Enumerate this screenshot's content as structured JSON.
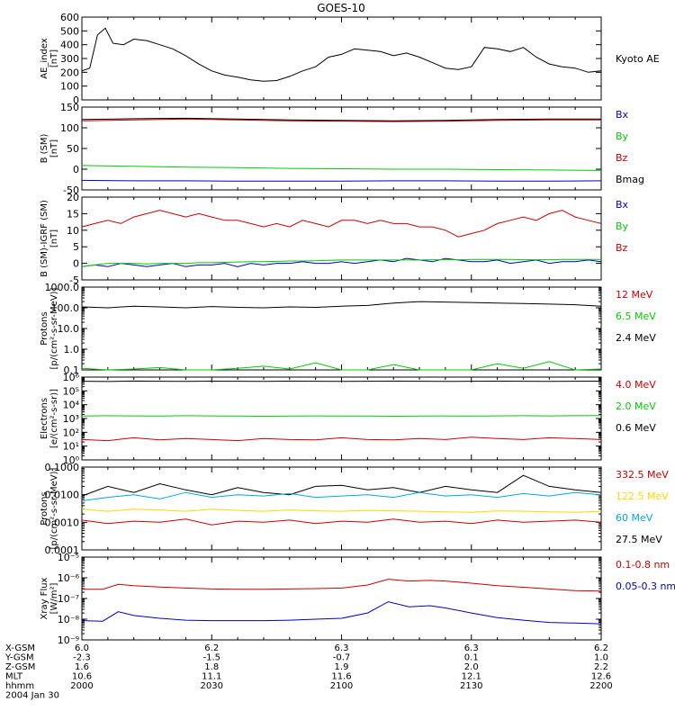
{
  "title": "GOES-10",
  "chart_data": [
    {
      "type": "line",
      "ylabel": [
        "AE_index",
        "[nT]"
      ],
      "ylim": [
        0,
        600
      ],
      "yticks": [
        0,
        100,
        200,
        300,
        400,
        500,
        600
      ],
      "ytick_labels": [
        "0",
        "100",
        "200",
        "300",
        "400",
        "500",
        "600"
      ],
      "legend": [
        {
          "label": "Kyoto AE",
          "color": "#000000"
        }
      ],
      "x": [
        0,
        3,
        6,
        9,
        12,
        16,
        20,
        25,
        30,
        35,
        40,
        45,
        50,
        55,
        60,
        65,
        70,
        75,
        80,
        85,
        90,
        95,
        100,
        105,
        110,
        115,
        120,
        125,
        130,
        135,
        140,
        145,
        150,
        155,
        160,
        165,
        170,
        175,
        180,
        185,
        190,
        195,
        200
      ],
      "series": [
        {
          "name": "Kyoto AE",
          "color": "#000000",
          "values": [
            210,
            230,
            470,
            520,
            410,
            400,
            440,
            430,
            400,
            370,
            320,
            260,
            210,
            180,
            165,
            145,
            135,
            140,
            170,
            210,
            240,
            310,
            330,
            370,
            360,
            350,
            320,
            340,
            310,
            270,
            230,
            220,
            240,
            380,
            370,
            350,
            380,
            310,
            260,
            240,
            230,
            200,
            210
          ]
        }
      ]
    },
    {
      "type": "line",
      "ylabel": [
        "B (SM)",
        "[nT]"
      ],
      "ylim": [
        -50,
        150
      ],
      "yticks": [
        -50,
        0,
        50,
        100,
        150
      ],
      "ytick_labels": [
        "-50",
        "0",
        "50",
        "100",
        "150"
      ],
      "legend": [
        {
          "label": "Bx",
          "color": "#0000cc"
        },
        {
          "label": "By",
          "color": "#00cc00"
        },
        {
          "label": "Bz",
          "color": "#cc0000"
        },
        {
          "label": "Bmag",
          "color": "#000000"
        }
      ],
      "x": [
        0,
        20,
        40,
        60,
        80,
        100,
        120,
        140,
        160,
        180,
        200
      ],
      "series": [
        {
          "name": "Bx",
          "color": "#0000cc",
          "values": [
            -27,
            -28,
            -28,
            -29,
            -29,
            -29,
            -28,
            -28,
            -29,
            -29,
            -28
          ]
        },
        {
          "name": "By",
          "color": "#00cc00",
          "values": [
            9,
            7,
            5,
            4,
            2,
            1,
            0,
            0,
            -1,
            -2,
            -3
          ]
        },
        {
          "name": "Bz",
          "color": "#cc0000",
          "values": [
            117,
            119,
            121,
            119,
            117,
            116,
            115,
            116,
            118,
            119,
            119
          ]
        },
        {
          "name": "Bmag",
          "color": "#000000",
          "values": [
            120,
            122,
            123,
            121,
            119,
            118,
            117,
            118,
            120,
            121,
            121
          ]
        }
      ]
    },
    {
      "type": "line",
      "ylabel": [
        "B (SM)-IGRF (SM)",
        "[nT]"
      ],
      "ylim": [
        -5,
        20
      ],
      "yticks": [
        -5,
        0,
        5,
        10,
        15,
        20
      ],
      "ytick_labels": [
        "-5",
        "0",
        "5",
        "10",
        "15",
        "20"
      ],
      "legend": [
        {
          "label": "Bx",
          "color": "#0000cc"
        },
        {
          "label": "By",
          "color": "#00cc00"
        },
        {
          "label": "Bz",
          "color": "#cc0000"
        }
      ],
      "x": [
        0,
        5,
        10,
        15,
        20,
        25,
        30,
        35,
        40,
        45,
        50,
        55,
        60,
        65,
        70,
        75,
        80,
        85,
        90,
        95,
        100,
        105,
        110,
        115,
        120,
        125,
        130,
        135,
        140,
        145,
        150,
        155,
        160,
        165,
        170,
        175,
        180,
        185,
        190,
        195,
        200
      ],
      "series": [
        {
          "name": "Bx",
          "color": "#0000cc",
          "values": [
            -1,
            -0.5,
            -1,
            0,
            -0.5,
            -1,
            -0.5,
            0,
            -1,
            -0.5,
            -0.5,
            0,
            -1,
            0,
            -0.5,
            0,
            0,
            0.5,
            0,
            0,
            0.5,
            0,
            0.5,
            1,
            0.5,
            1.5,
            1,
            0.5,
            1.5,
            1,
            0.5,
            0.5,
            1,
            0,
            0.5,
            1,
            0,
            0.5,
            0.5,
            1,
            0.5
          ]
        },
        {
          "name": "By",
          "color": "#00cc00",
          "values": [
            -1,
            -0.5,
            0,
            0,
            0,
            -0.2,
            0,
            0,
            0,
            0.2,
            0.2,
            0.3,
            0.4,
            0.5,
            0.5,
            0.6,
            0.7,
            0.7,
            0.8,
            0.9,
            1,
            1,
            1,
            1,
            1,
            1,
            1,
            1.1,
            1.1,
            1.1,
            1.2,
            1.2,
            1.2,
            1.2,
            1.1,
            1.1,
            1.1,
            1.2,
            1.2,
            1.2,
            1.2
          ]
        },
        {
          "name": "Bz",
          "color": "#cc0000",
          "values": [
            11,
            12,
            13,
            12,
            14,
            15,
            16,
            15,
            14,
            15,
            14,
            13,
            13,
            12,
            11,
            12,
            11,
            13,
            12,
            11,
            13,
            13,
            12,
            13,
            12,
            12,
            11,
            11,
            10,
            8,
            9,
            10,
            12,
            13,
            14,
            13,
            15,
            16,
            14,
            13,
            12
          ]
        }
      ]
    },
    {
      "type": "line",
      "scale": "log",
      "ylabel": [
        "Protons",
        "[p/(cm²-s-sr-MeV)]"
      ],
      "ylim": [
        0.1,
        1000
      ],
      "yticks": [
        0.1,
        1,
        10,
        100,
        1000
      ],
      "ytick_labels": [
        "0.1",
        "1.0",
        "10.0",
        "100.0",
        "1000.0"
      ],
      "legend": [
        {
          "label": "12 MeV",
          "color": "#cc0000"
        },
        {
          "label": "6.5 MeV",
          "color": "#00cc00"
        },
        {
          "label": "2.4 MeV",
          "color": "#000000"
        }
      ],
      "x": [
        0,
        10,
        20,
        30,
        40,
        50,
        60,
        70,
        80,
        90,
        100,
        110,
        120,
        130,
        140,
        150,
        160,
        170,
        180,
        190,
        200
      ],
      "series": [
        {
          "name": "2.4 MeV",
          "color": "#000000",
          "values": [
            110,
            100,
            120,
            110,
            100,
            115,
            105,
            100,
            110,
            105,
            120,
            130,
            170,
            200,
            190,
            180,
            170,
            160,
            150,
            140,
            120
          ]
        },
        {
          "name": "6.5 MeV",
          "color": "#00cc00",
          "values": [
            0.12,
            0.1,
            0.11,
            0.13,
            0.1,
            0.1,
            0.12,
            0.15,
            0.11,
            0.22,
            0.1,
            0.1,
            0.18,
            0.1,
            0.1,
            0.1,
            0.2,
            0.12,
            0.25,
            0.1,
            0.11
          ]
        }
      ]
    },
    {
      "type": "line",
      "scale": "log",
      "ylabel": [
        "Electrons",
        "[e/(cm²-s-sr)]"
      ],
      "ylim": [
        1,
        1000000
      ],
      "yticks": [
        1,
        10,
        100,
        1000,
        10000,
        100000,
        1000000
      ],
      "ytick_labels": [
        "10⁰",
        "10¹",
        "10²",
        "10³",
        "10⁴",
        "10⁵",
        "10⁶"
      ],
      "legend": [
        {
          "label": "4.0 MeV",
          "color": "#cc0000"
        },
        {
          "label": "2.0 MeV",
          "color": "#00cc00"
        },
        {
          "label": "0.6 MeV",
          "color": "#000000"
        }
      ],
      "x": [
        0,
        10,
        20,
        30,
        40,
        50,
        60,
        70,
        80,
        90,
        100,
        110,
        120,
        130,
        140,
        150,
        160,
        170,
        180,
        190,
        200
      ],
      "series": [
        {
          "name": "0.6 MeV",
          "color": "#000000",
          "values": [
            500000,
            480000,
            520000,
            500000,
            490000,
            510000,
            500000,
            495000,
            505000,
            500000,
            490000,
            500000,
            510000,
            500000,
            490000,
            500000,
            510000,
            500000,
            495000,
            500000,
            505000
          ]
        },
        {
          "name": "2.0 MeV",
          "color": "#00cc00",
          "values": [
            1500,
            1600,
            1550,
            1500,
            1600,
            1550,
            1500,
            1450,
            1500,
            1550,
            1500,
            1500,
            1450,
            1500,
            1550,
            1500,
            1550,
            1600,
            1550,
            1600,
            1650
          ]
        },
        {
          "name": "4.0 MeV",
          "color": "#cc0000",
          "values": [
            30,
            25,
            40,
            28,
            35,
            30,
            25,
            35,
            30,
            28,
            40,
            30,
            28,
            35,
            30,
            45,
            35,
            30,
            40,
            35,
            30
          ]
        }
      ]
    },
    {
      "type": "line",
      "scale": "log",
      "ylabel": [
        "Protons",
        "[p/(cm²-s-sr-MeV)]"
      ],
      "ylim": [
        0.0001,
        0.1
      ],
      "yticks": [
        0.0001,
        0.001,
        0.01,
        0.1
      ],
      "ytick_labels": [
        "0.0001",
        "0.0010",
        "0.0100",
        "0.1000"
      ],
      "legend": [
        {
          "label": "332.5 MeV",
          "color": "#cc0000"
        },
        {
          "label": "122.5 MeV",
          "color": "#ffd700"
        },
        {
          "label": "60 MeV",
          "color": "#00aadd"
        },
        {
          "label": "27.5 MeV",
          "color": "#000000"
        }
      ],
      "x": [
        0,
        10,
        20,
        30,
        40,
        50,
        60,
        70,
        80,
        90,
        100,
        110,
        120,
        130,
        140,
        150,
        160,
        170,
        180,
        190,
        200
      ],
      "series": [
        {
          "name": "27.5 MeV",
          "color": "#000000",
          "values": [
            0.009,
            0.02,
            0.012,
            0.025,
            0.015,
            0.01,
            0.018,
            0.012,
            0.01,
            0.02,
            0.022,
            0.015,
            0.018,
            0.012,
            0.02,
            0.015,
            0.012,
            0.05,
            0.02,
            0.015,
            0.012
          ]
        },
        {
          "name": "60 MeV",
          "color": "#00aadd",
          "values": [
            0.006,
            0.008,
            0.01,
            0.007,
            0.012,
            0.008,
            0.01,
            0.009,
            0.011,
            0.008,
            0.009,
            0.01,
            0.008,
            0.012,
            0.009,
            0.01,
            0.008,
            0.011,
            0.009,
            0.012,
            0.01
          ]
        },
        {
          "name": "122.5 MeV",
          "color": "#ffd700",
          "values": [
            0.003,
            0.0025,
            0.003,
            0.0028,
            0.0025,
            0.003,
            0.0027,
            0.0025,
            0.0028,
            0.0026,
            0.0025,
            0.0027,
            0.0026,
            0.0025,
            0.0024,
            0.0023,
            0.0026,
            0.0025,
            0.0024,
            0.0023,
            0.0025
          ]
        },
        {
          "name": "332.5 MeV",
          "color": "#cc0000",
          "values": [
            0.0012,
            0.0009,
            0.0011,
            0.001,
            0.0013,
            0.0008,
            0.0011,
            0.001,
            0.0012,
            0.0009,
            0.0011,
            0.001,
            0.0013,
            0.001,
            0.0011,
            0.0009,
            0.0012,
            0.001,
            0.0011,
            0.0012,
            0.001
          ]
        }
      ]
    },
    {
      "type": "line",
      "scale": "log",
      "ylabel": [
        "Xray Flux",
        "[W/m²]"
      ],
      "ylim": [
        1e-09,
        1e-05
      ],
      "yticks": [
        1e-09,
        1e-08,
        1e-07,
        1e-06,
        1e-05
      ],
      "ytick_labels": [
        "10⁻⁹",
        "10⁻⁸",
        "10⁻⁷",
        "10⁻⁶",
        "10⁻⁵"
      ],
      "legend": [
        {
          "label": "0.1-0.8 nm",
          "color": "#cc0000"
        },
        {
          "label": "0.05-0.3 nm",
          "color": "#0000cc"
        }
      ],
      "x": [
        0,
        8,
        14,
        20,
        30,
        40,
        50,
        60,
        70,
        80,
        90,
        100,
        110,
        118,
        126,
        134,
        140,
        150,
        160,
        170,
        180,
        190,
        200
      ],
      "series": [
        {
          "name": "0.1-0.8 nm",
          "color": "#cc0000",
          "values": [
            2.8e-07,
            2.8e-07,
            4.8e-07,
            4.2e-07,
            3.6e-07,
            3.2e-07,
            2.9e-07,
            2.8e-07,
            2.8e-07,
            2.9e-07,
            3e-07,
            3.2e-07,
            4.5e-07,
            8.5e-07,
            7e-07,
            7.5e-07,
            7e-07,
            5.5e-07,
            4.2e-07,
            3.5e-07,
            2.9e-07,
            2.4e-07,
            2.3e-07
          ]
        },
        {
          "name": "0.05-0.3 nm",
          "color": "#0000cc",
          "values": [
            8.5e-09,
            8e-09,
            2.3e-08,
            1.5e-08,
            1.1e-08,
            9e-09,
            8.5e-09,
            8.5e-09,
            8.5e-09,
            9e-09,
            1e-08,
            1.1e-08,
            2e-08,
            7e-08,
            4e-08,
            4.5e-08,
            3.5e-08,
            2e-08,
            1.2e-08,
            9e-09,
            7e-09,
            6.5e-09,
            6e-09
          ]
        }
      ]
    }
  ],
  "x_axis": {
    "xlim": [
      0,
      200
    ],
    "tick_positions": [
      0,
      50,
      100,
      150,
      200
    ],
    "minor_step": 10,
    "rows": [
      {
        "label": "X-GSM",
        "values": [
          "6.0",
          "6.2",
          "6.3",
          "6.3",
          "6.2"
        ]
      },
      {
        "label": "Y-GSM",
        "values": [
          "-2.3",
          "-1.5",
          "-0.7",
          "0.1",
          "1.0"
        ]
      },
      {
        "label": "Z-GSM",
        "values": [
          "1.6",
          "1.8",
          "1.9",
          "2.0",
          "2.2"
        ]
      },
      {
        "label": "MLT",
        "values": [
          "10.6",
          "11.1",
          "11.6",
          "12.1",
          "12.6"
        ]
      },
      {
        "label": "hhmm",
        "values": [
          "2000",
          "2030",
          "2100",
          "2130",
          "2200"
        ]
      }
    ],
    "date": "2004 Jan 30"
  }
}
